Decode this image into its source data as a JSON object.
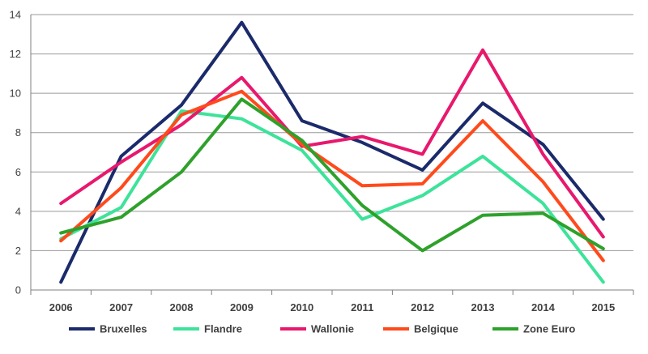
{
  "chart_data": {
    "type": "line",
    "title": "",
    "xlabel": "",
    "ylabel": "",
    "categories": [
      "2006",
      "2007",
      "2008",
      "2009",
      "2010",
      "2011",
      "2012",
      "2013",
      "2014",
      "2015"
    ],
    "ylim": [
      0,
      14
    ],
    "yticks": [
      "0",
      "2",
      "4",
      "6",
      "8",
      "10",
      "12",
      "14"
    ],
    "grid": true,
    "legend_position": "bottom",
    "series": [
      {
        "name": "Bruxelles",
        "color": "#1b2a6b",
        "values": [
          0.4,
          6.8,
          9.4,
          13.6,
          8.6,
          7.5,
          6.1,
          9.5,
          7.4,
          3.6
        ]
      },
      {
        "name": "Flandre",
        "color": "#3de39a",
        "values": [
          2.6,
          4.2,
          9.1,
          8.7,
          7.1,
          3.6,
          4.8,
          6.8,
          4.4,
          0.4
        ]
      },
      {
        "name": "Wallonie",
        "color": "#e8186d",
        "values": [
          4.4,
          6.5,
          8.4,
          10.8,
          7.3,
          7.8,
          6.9,
          12.2,
          6.9,
          2.7
        ]
      },
      {
        "name": "Belgique",
        "color": "#ff4a1c",
        "values": [
          2.5,
          5.2,
          8.9,
          10.1,
          7.4,
          5.3,
          5.4,
          8.6,
          5.5,
          1.5
        ]
      },
      {
        "name": "Zone Euro",
        "color": "#2ea12b",
        "values": [
          2.9,
          3.7,
          6.0,
          9.7,
          7.6,
          4.3,
          2.0,
          3.8,
          3.9,
          2.1
        ]
      }
    ]
  }
}
